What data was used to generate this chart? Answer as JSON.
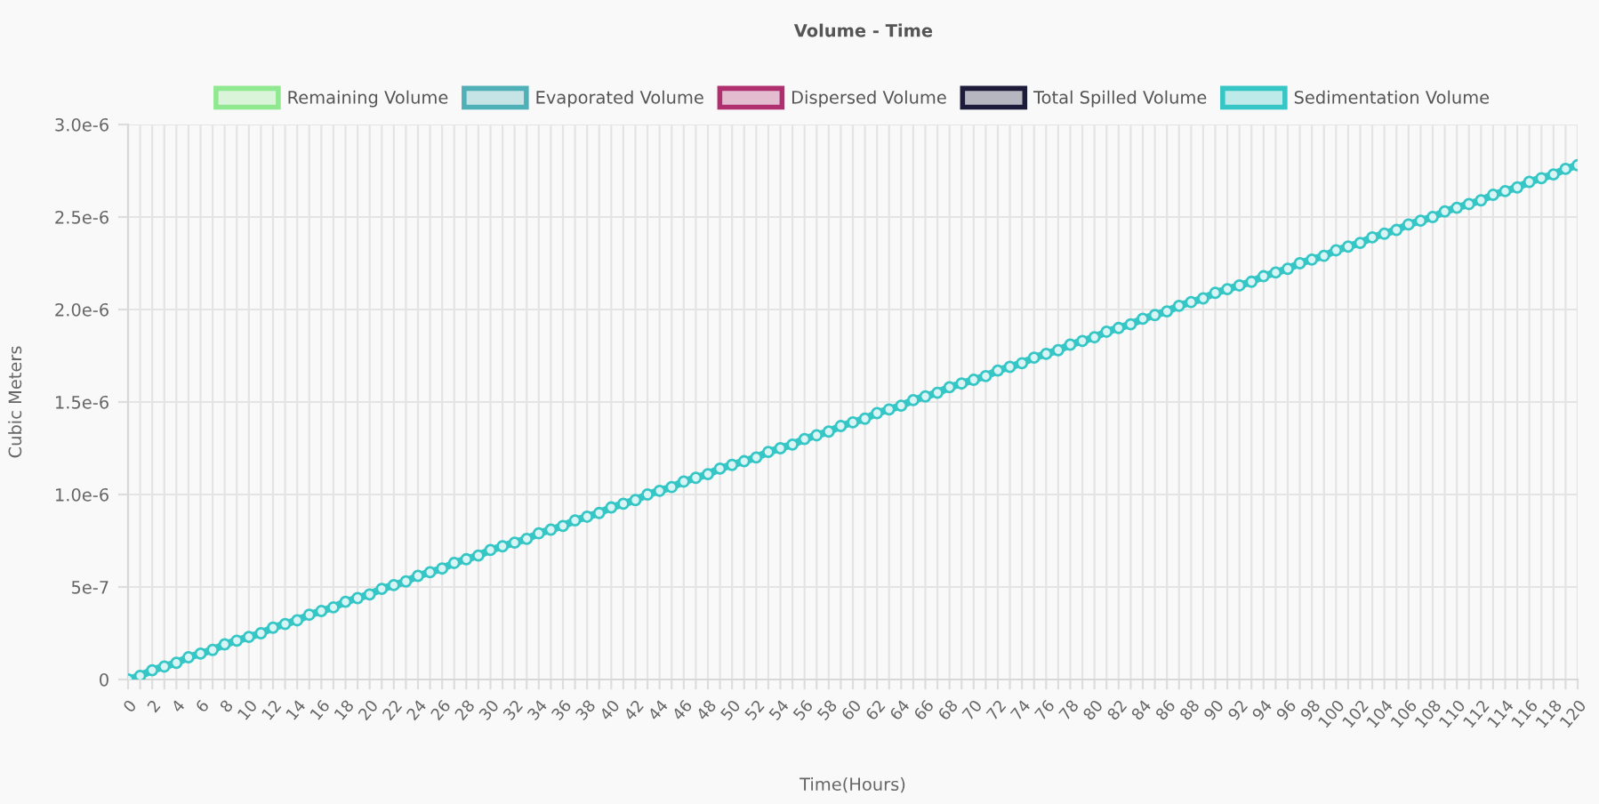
{
  "chart_data": {
    "type": "line",
    "title": "Volume - Time",
    "xlabel": "Time(Hours)",
    "ylabel": "Cubic Meters",
    "x": [
      0,
      1,
      2,
      3,
      4,
      5,
      6,
      7,
      8,
      9,
      10,
      11,
      12,
      13,
      14,
      15,
      16,
      17,
      18,
      19,
      20,
      21,
      22,
      23,
      24,
      25,
      26,
      27,
      28,
      29,
      30,
      31,
      32,
      33,
      34,
      35,
      36,
      37,
      38,
      39,
      40,
      41,
      42,
      43,
      44,
      45,
      46,
      47,
      48,
      49,
      50,
      51,
      52,
      53,
      54,
      55,
      56,
      57,
      58,
      59,
      60,
      61,
      62,
      63,
      64,
      65,
      66,
      67,
      68,
      69,
      70,
      71,
      72,
      73,
      74,
      75,
      76,
      77,
      78,
      79,
      80,
      81,
      82,
      83,
      84,
      85,
      86,
      87,
      88,
      89,
      90,
      91,
      92,
      93,
      94,
      95,
      96,
      97,
      98,
      99,
      100,
      101,
      102,
      103,
      104,
      105,
      106,
      107,
      108,
      109,
      110,
      111,
      112,
      113,
      114,
      115,
      116,
      117,
      118,
      119,
      120
    ],
    "series": [
      {
        "name": "Remaining Volume",
        "color": "#90e890",
        "values": [
          null,
          null,
          null,
          null,
          null,
          null,
          null,
          null,
          null,
          null,
          null,
          null,
          null,
          null,
          null,
          null,
          null,
          null,
          null,
          null,
          null,
          null,
          null,
          null,
          null,
          null,
          null,
          null,
          null,
          null,
          null,
          null,
          null,
          null,
          null,
          null,
          null,
          null,
          null,
          null,
          null,
          null,
          null,
          null,
          null,
          null,
          null,
          null,
          null,
          null,
          null,
          null,
          null,
          null,
          null,
          null,
          null,
          null,
          null,
          null,
          null,
          null,
          null,
          null,
          null,
          null,
          null,
          null,
          null,
          null,
          null,
          null,
          null,
          null,
          null,
          null,
          null,
          null,
          null,
          null,
          null,
          null,
          null,
          null,
          null,
          null,
          null,
          null,
          null,
          null,
          null,
          null,
          null,
          null,
          null,
          null,
          null,
          null,
          null,
          null,
          null,
          null,
          null,
          null,
          null,
          null,
          null,
          null,
          null,
          null,
          null,
          null,
          null,
          null,
          null,
          null,
          null,
          null,
          null,
          null,
          null
        ]
      },
      {
        "name": "Evaporated Volume",
        "color": "#4fb0b8",
        "values": [
          null,
          null,
          null,
          null,
          null,
          null,
          null,
          null,
          null,
          null,
          null,
          null,
          null,
          null,
          null,
          null,
          null,
          null,
          null,
          null,
          null,
          null,
          null,
          null,
          null,
          null,
          null,
          null,
          null,
          null,
          null,
          null,
          null,
          null,
          null,
          null,
          null,
          null,
          null,
          null,
          null,
          null,
          null,
          null,
          null,
          null,
          null,
          null,
          null,
          null,
          null,
          null,
          null,
          null,
          null,
          null,
          null,
          null,
          null,
          null,
          null,
          null,
          null,
          null,
          null,
          null,
          null,
          null,
          null,
          null,
          null,
          null,
          null,
          null,
          null,
          null,
          null,
          null,
          null,
          null,
          null,
          null,
          null,
          null,
          null,
          null,
          null,
          null,
          null,
          null,
          null,
          null,
          null,
          null,
          null,
          null,
          null,
          null,
          null,
          null,
          null,
          null,
          null,
          null,
          null,
          null,
          null,
          null,
          null,
          null,
          null,
          null,
          null,
          null,
          null,
          null,
          null,
          null,
          null,
          null,
          null
        ]
      },
      {
        "name": "Dispersed Volume",
        "color": "#b0306f",
        "values": [
          null,
          null,
          null,
          null,
          null,
          null,
          null,
          null,
          null,
          null,
          null,
          null,
          null,
          null,
          null,
          null,
          null,
          null,
          null,
          null,
          null,
          null,
          null,
          null,
          null,
          null,
          null,
          null,
          null,
          null,
          null,
          null,
          null,
          null,
          null,
          null,
          null,
          null,
          null,
          null,
          null,
          null,
          null,
          null,
          null,
          null,
          null,
          null,
          null,
          null,
          null,
          null,
          null,
          null,
          null,
          null,
          null,
          null,
          null,
          null,
          null,
          null,
          null,
          null,
          null,
          null,
          null,
          null,
          null,
          null,
          null,
          null,
          null,
          null,
          null,
          null,
          null,
          null,
          null,
          null,
          null,
          null,
          null,
          null,
          null,
          null,
          null,
          null,
          null,
          null,
          null,
          null,
          null,
          null,
          null,
          null,
          null,
          null,
          null,
          null,
          null,
          null,
          null,
          null,
          null,
          null,
          null,
          null,
          null,
          null,
          null,
          null,
          null,
          null,
          null,
          null,
          null,
          null,
          null,
          null,
          null
        ]
      },
      {
        "name": "Total Spilled Volume",
        "color": "#1c1c3a",
        "values": [
          null,
          null,
          null,
          null,
          null,
          null,
          null,
          null,
          null,
          null,
          null,
          null,
          null,
          null,
          null,
          null,
          null,
          null,
          null,
          null,
          null,
          null,
          null,
          null,
          null,
          null,
          null,
          null,
          null,
          null,
          null,
          null,
          null,
          null,
          null,
          null,
          null,
          null,
          null,
          null,
          null,
          null,
          null,
          null,
          null,
          null,
          null,
          null,
          null,
          null,
          null,
          null,
          null,
          null,
          null,
          null,
          null,
          null,
          null,
          null,
          null,
          null,
          null,
          null,
          null,
          null,
          null,
          null,
          null,
          null,
          null,
          null,
          null,
          null,
          null,
          null,
          null,
          null,
          null,
          null,
          null,
          null,
          null,
          null,
          null,
          null,
          null,
          null,
          null,
          null,
          null,
          null,
          null,
          null,
          null,
          null,
          null,
          null,
          null,
          null,
          null,
          null,
          null,
          null,
          null,
          null,
          null,
          null,
          null,
          null,
          null,
          null,
          null,
          null,
          null,
          null,
          null,
          null,
          null,
          null,
          null
        ]
      },
      {
        "name": "Sedimentation Volume",
        "color": "#36c6c6",
        "values": [
          0,
          2e-08,
          5e-08,
          7e-08,
          9e-08,
          1.2e-07,
          1.4e-07,
          1.6e-07,
          1.9e-07,
          2.1e-07,
          2.3e-07,
          2.5e-07,
          2.8e-07,
          3e-07,
          3.2e-07,
          3.5e-07,
          3.7e-07,
          3.9e-07,
          4.2e-07,
          4.4e-07,
          4.6e-07,
          4.9e-07,
          5.1e-07,
          5.3e-07,
          5.6e-07,
          5.8e-07,
          6e-07,
          6.3e-07,
          6.5e-07,
          6.7e-07,
          7e-07,
          7.2e-07,
          7.4e-07,
          7.6e-07,
          7.9e-07,
          8.1e-07,
          8.3e-07,
          8.6e-07,
          8.8e-07,
          9e-07,
          9.3e-07,
          9.5e-07,
          9.7e-07,
          1e-06,
          1.02e-06,
          1.04e-06,
          1.07e-06,
          1.09e-06,
          1.11e-06,
          1.14e-06,
          1.16e-06,
          1.18e-06,
          1.2e-06,
          1.23e-06,
          1.25e-06,
          1.27e-06,
          1.3e-06,
          1.32e-06,
          1.34e-06,
          1.37e-06,
          1.39e-06,
          1.41e-06,
          1.44e-06,
          1.46e-06,
          1.48e-06,
          1.51e-06,
          1.53e-06,
          1.55e-06,
          1.58e-06,
          1.6e-06,
          1.62e-06,
          1.64e-06,
          1.67e-06,
          1.69e-06,
          1.71e-06,
          1.74e-06,
          1.76e-06,
          1.78e-06,
          1.81e-06,
          1.83e-06,
          1.85e-06,
          1.88e-06,
          1.9e-06,
          1.92e-06,
          1.95e-06,
          1.97e-06,
          1.99e-06,
          2.02e-06,
          2.04e-06,
          2.06e-06,
          2.09e-06,
          2.11e-06,
          2.13e-06,
          2.15e-06,
          2.18e-06,
          2.2e-06,
          2.22e-06,
          2.25e-06,
          2.27e-06,
          2.29e-06,
          2.32e-06,
          2.34e-06,
          2.36e-06,
          2.39e-06,
          2.41e-06,
          2.43e-06,
          2.46e-06,
          2.48e-06,
          2.5e-06,
          2.53e-06,
          2.55e-06,
          2.57e-06,
          2.59e-06,
          2.62e-06,
          2.64e-06,
          2.66e-06,
          2.69e-06,
          2.71e-06,
          2.73e-06,
          2.76e-06,
          2.78e-06
        ]
      }
    ],
    "xlim": [
      0,
      120
    ],
    "xticks": [
      0,
      {
        "value": 1,
        "label": null
      },
      2,
      {
        "value": 3,
        "label": null
      },
      4,
      {
        "value": 5,
        "label": null
      },
      6,
      {
        "value": 7,
        "label": null
      },
      8,
      {
        "value": 9,
        "label": null
      },
      10,
      {
        "value": 11,
        "label": null
      },
      12,
      {
        "value": 13,
        "label": null
      },
      14,
      {
        "value": 15,
        "label": null
      },
      16,
      {
        "value": 17,
        "label": null
      },
      18,
      {
        "value": 19,
        "label": null
      },
      20,
      {
        "value": 21,
        "label": null
      },
      22,
      {
        "value": 23,
        "label": null
      },
      24,
      {
        "value": 25,
        "label": null
      },
      26,
      {
        "value": 27,
        "label": null
      },
      28,
      {
        "value": 29,
        "label": null
      },
      30,
      {
        "value": 31,
        "label": null
      },
      32,
      {
        "value": 33,
        "label": null
      },
      34,
      {
        "value": 35,
        "label": null
      },
      36,
      {
        "value": 37,
        "label": null
      },
      38,
      {
        "value": 39,
        "label": null
      },
      40,
      {
        "value": 41,
        "label": null
      },
      42,
      {
        "value": 43,
        "label": null
      },
      44,
      {
        "value": 45,
        "label": null
      },
      46,
      {
        "value": 47,
        "label": null
      },
      48,
      {
        "value": 49,
        "label": null
      },
      50,
      {
        "value": 51,
        "label": null
      },
      52,
      {
        "value": 53,
        "label": null
      },
      54,
      {
        "value": 55,
        "label": null
      },
      56,
      {
        "value": 57,
        "label": null
      },
      58,
      {
        "value": 59,
        "label": null
      },
      60,
      {
        "value": 61,
        "label": null
      },
      62,
      {
        "value": 63,
        "label": null
      },
      64,
      {
        "value": 65,
        "label": null
      },
      66,
      {
        "value": 67,
        "label": null
      },
      68,
      {
        "value": 69,
        "label": null
      },
      70,
      {
        "value": 71,
        "label": null
      },
      72,
      {
        "value": 73,
        "label": null
      },
      74,
      {
        "value": 75,
        "label": null
      },
      76,
      {
        "value": 77,
        "label": null
      },
      78,
      {
        "value": 79,
        "label": null
      },
      80,
      {
        "value": 81,
        "label": null
      },
      82,
      {
        "value": 83,
        "label": null
      },
      84,
      {
        "value": 85,
        "label": null
      },
      86,
      {
        "value": 87,
        "label": null
      },
      88,
      {
        "value": 89,
        "label": null
      },
      90,
      {
        "value": 91,
        "label": null
      },
      92,
      {
        "value": 93,
        "label": null
      },
      94,
      {
        "value": 95,
        "label": null
      },
      96,
      {
        "value": 97,
        "label": null
      },
      98,
      {
        "value": 99,
        "label": null
      },
      100,
      {
        "value": 101,
        "label": null
      },
      102,
      {
        "value": 103,
        "label": null
      },
      104,
      {
        "value": 105,
        "label": null
      },
      106,
      {
        "value": 107,
        "label": null
      },
      108,
      {
        "value": 109,
        "label": null
      },
      110,
      {
        "value": 111,
        "label": null
      },
      112,
      {
        "value": 113,
        "label": null
      },
      114,
      {
        "value": 115,
        "label": null
      },
      116,
      {
        "value": 117,
        "label": null
      },
      118,
      {
        "value": 119,
        "label": null
      },
      120
    ],
    "ylim": [
      0,
      3e-06
    ],
    "yticks": [
      0,
      {
        "value": 5e-07,
        "label": "5e-7"
      },
      {
        "value": 1e-06,
        "label": "1.0e-6"
      },
      {
        "value": 1.5e-06,
        "label": "1.5e-6"
      },
      {
        "value": 2e-06,
        "label": "2.0e-6"
      },
      {
        "value": 2.5e-06,
        "label": "2.5e-6"
      },
      {
        "value": 3e-06,
        "label": "3.0e-6"
      }
    ],
    "grid": true,
    "legend": "top",
    "marker": "circle",
    "line_style": "solid"
  }
}
